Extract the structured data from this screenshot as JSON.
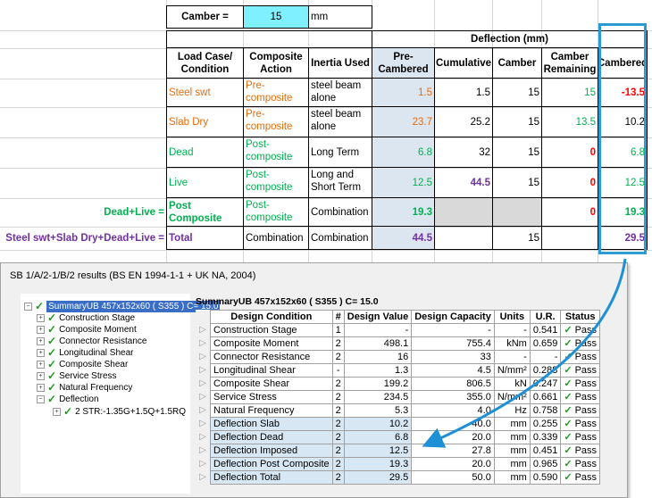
{
  "spreadsheet": {
    "camber_label": "Camber =",
    "camber_value": "15",
    "camber_unit": "mm",
    "deflection_header": "Deflection (mm)",
    "columns": [
      "Load Case/ Condition",
      "Composite Action",
      "Inertia Used",
      "Pre-Cambered",
      "Cumulative",
      "Camber",
      "Camber Remaining",
      "Cambered"
    ],
    "rows": [
      {
        "case": "Steel swt",
        "action": "Pre-composite",
        "inertia": "steel beam alone",
        "pre": "1.5",
        "cum": "1.5",
        "camber": "15",
        "remaining": "15",
        "cambered": "-13.5"
      },
      {
        "case": "Slab Dry",
        "action": "Pre-composite",
        "inertia": "steel beam alone",
        "pre": "23.7",
        "cum": "25.2",
        "camber": "15",
        "remaining": "13.5",
        "cambered": "10.2"
      },
      {
        "case": "Dead",
        "action": "Post-composite",
        "inertia": "Long Term",
        "pre": "6.8",
        "cum": "32",
        "camber": "15",
        "remaining": "0",
        "cambered": "6.8"
      },
      {
        "case": "Live",
        "action": "Post-composite",
        "inertia": "Long and Short Term",
        "pre": "12.5",
        "cum": "44.5",
        "camber": "15",
        "remaining": "0",
        "cambered": "12.5"
      },
      {
        "label": "Dead+Live =",
        "case": "Post Composite",
        "action": "Post-composite",
        "inertia": "Combination",
        "pre": "19.3",
        "cum": "",
        "camber": "",
        "remaining": "0",
        "cambered": "19.3"
      },
      {
        "label": "Steel swt+Slab Dry+Dead+Live =",
        "case": "Total",
        "action": "Combination",
        "inertia": "Combination",
        "pre": "44.5",
        "cum": "",
        "camber": "15",
        "remaining": "",
        "cambered": "29.5"
      }
    ],
    "colors": {
      "orange": "#e46c0a",
      "green": "#00b050",
      "purple": "#7030a0",
      "red": "#ff0000",
      "highlight": "#2b9bd3"
    }
  },
  "panel": {
    "title": "SB 1/A/2-1/B/2 results (BS EN 1994-1-1 + UK NA, 2004)",
    "tree": {
      "root": "SummaryUB 457x152x60 ( S355 ) C= 15.0",
      "items": [
        "Construction Stage",
        "Composite Moment",
        "Connector Resistance",
        "Longitudinal Shear",
        "Composite Shear",
        "Service Stress",
        "Natural Frequency",
        "Deflection"
      ],
      "sub_item": "2 STR:-1.35G+1.5Q+1.5RQ"
    },
    "detail_title": "SummaryUB 457x152x60 ( S355 ) C= 15.0",
    "headers": [
      "Design Condition",
      "#",
      "Design Value",
      "Design Capacity",
      "Units",
      "U.R.",
      "Status"
    ],
    "rows": [
      {
        "cond": "Construction Stage",
        "n": "1",
        "val": "-",
        "cap": "-",
        "units": "-",
        "ur": "0.541",
        "status": "Pass"
      },
      {
        "cond": "Composite Moment",
        "n": "2",
        "val": "498.1",
        "cap": "755.4",
        "units": "kNm",
        "ur": "0.659",
        "status": "Pass"
      },
      {
        "cond": "Connector Resistance",
        "n": "2",
        "val": "16",
        "cap": "33",
        "units": "-",
        "ur": "-",
        "status": "Pass"
      },
      {
        "cond": "Longitudinal Shear",
        "n": "-",
        "val": "1.3",
        "cap": "4.5",
        "units": "N/mm²",
        "ur": "0.288",
        "status": "Pass"
      },
      {
        "cond": "Composite Shear",
        "n": "2",
        "val": "199.2",
        "cap": "806.5",
        "units": "kN",
        "ur": "0.247",
        "status": "Pass"
      },
      {
        "cond": "Service Stress",
        "n": "2",
        "val": "234.5",
        "cap": "355.0",
        "units": "N/mm²",
        "ur": "0.661",
        "status": "Pass"
      },
      {
        "cond": "Natural Frequency",
        "n": "2",
        "val": "5.3",
        "cap": "4.0",
        "units": "Hz",
        "ur": "0.758",
        "status": "Pass"
      },
      {
        "cond": "Deflection Slab",
        "n": "2",
        "val": "10.2",
        "cap": "40.0",
        "units": "mm",
        "ur": "0.255",
        "status": "Pass"
      },
      {
        "cond": "Deflection Dead",
        "n": "2",
        "val": "6.8",
        "cap": "20.0",
        "units": "mm",
        "ur": "0.339",
        "status": "Pass"
      },
      {
        "cond": "Deflection Imposed",
        "n": "2",
        "val": "12.5",
        "cap": "27.8",
        "units": "mm",
        "ur": "0.451",
        "status": "Pass"
      },
      {
        "cond": "Deflection Post Composite",
        "n": "2",
        "val": "19.3",
        "cap": "20.0",
        "units": "mm",
        "ur": "0.965",
        "status": "Pass"
      },
      {
        "cond": "Deflection Total",
        "n": "2",
        "val": "29.5",
        "cap": "50.0",
        "units": "mm",
        "ur": "0.590",
        "status": "Pass"
      }
    ]
  }
}
